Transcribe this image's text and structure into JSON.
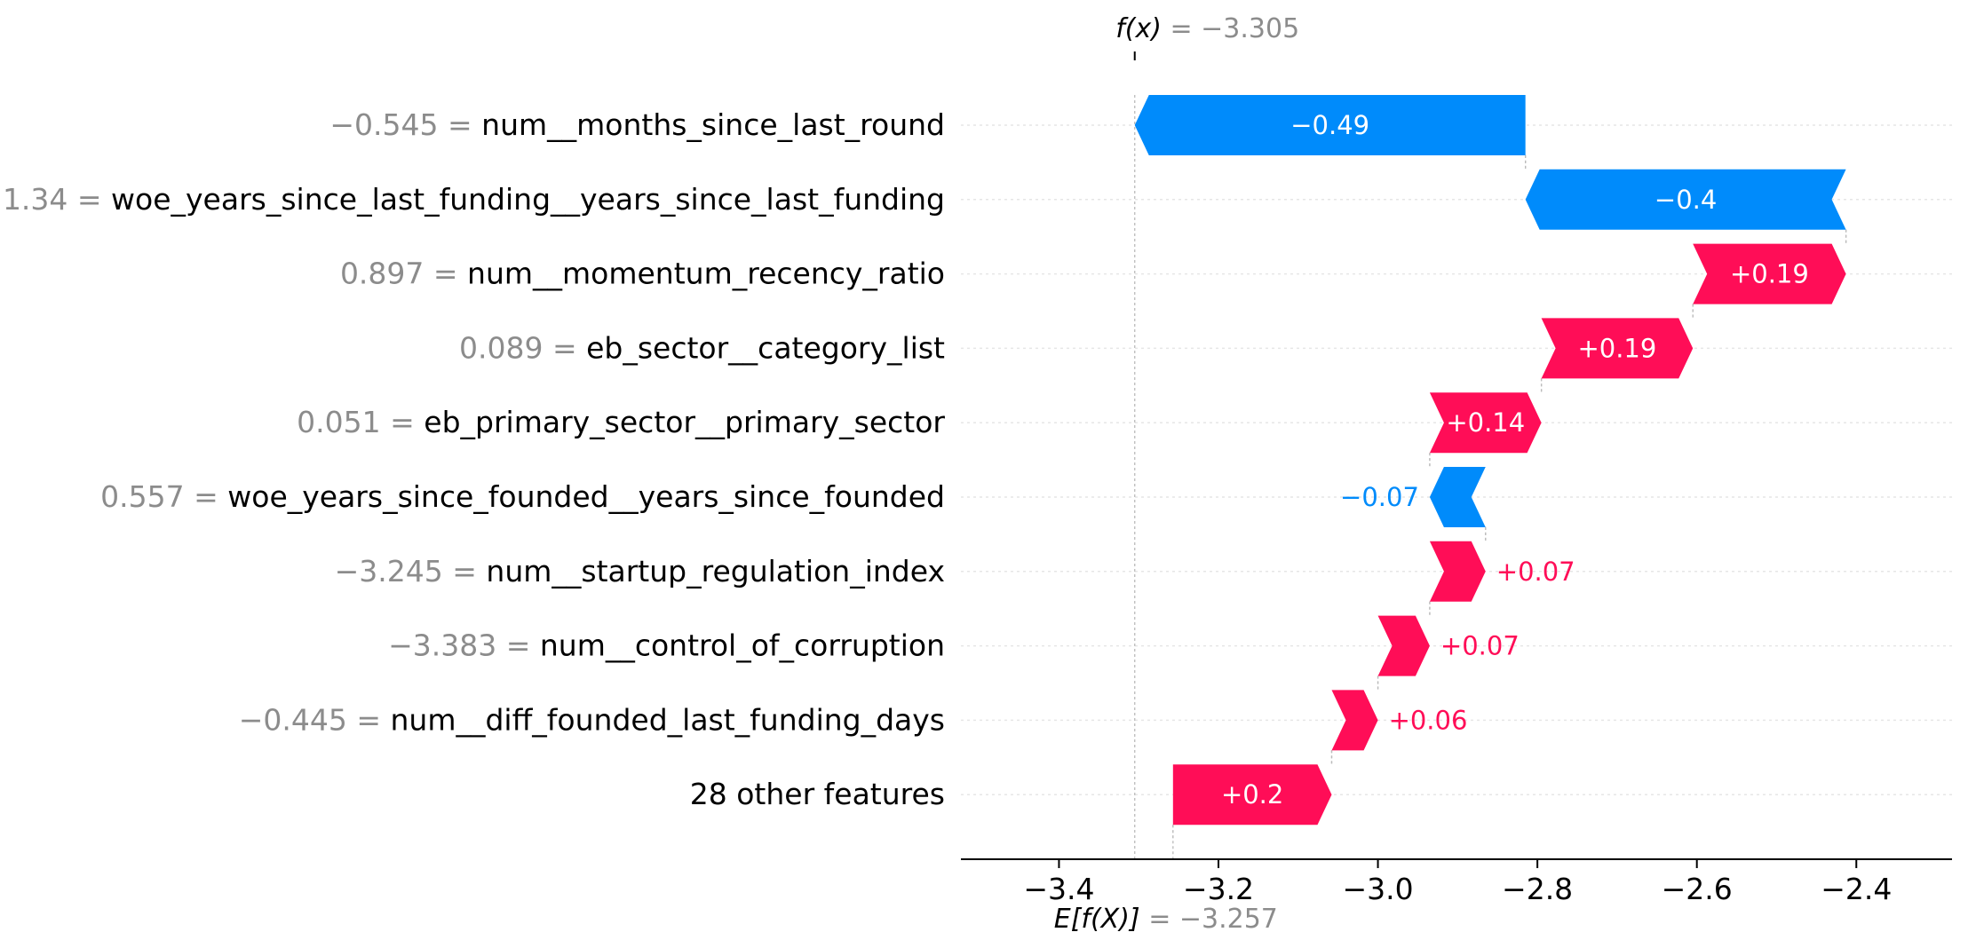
{
  "chart_data": {
    "type": "waterfall",
    "fx_label": "f(x)",
    "fx_value": "−3.305",
    "base_label": "E[f(X)]",
    "base_value_text": "−3.257",
    "base_value": -3.257,
    "final_value": -3.305,
    "features": [
      {
        "value": "−0.545",
        "name": "num__months_since_last_round",
        "contribution": -0.49,
        "label": "−0.49",
        "from": -2.815,
        "to": -3.305
      },
      {
        "value": "1.34",
        "name": "woe_years_since_last_funding__years_since_last_funding",
        "contribution": -0.4,
        "label": "−0.4",
        "from": -2.413,
        "to": -2.815
      },
      {
        "value": "0.897",
        "name": "num__momentum_recency_ratio",
        "contribution": 0.19,
        "label": "+0.19",
        "from": -2.605,
        "to": -2.413
      },
      {
        "value": "0.089",
        "name": "eb_sector__category_list",
        "contribution": 0.19,
        "label": "+0.19",
        "from": -2.795,
        "to": -2.605
      },
      {
        "value": "0.051",
        "name": "eb_primary_sector__primary_sector",
        "contribution": 0.14,
        "label": "+0.14",
        "from": -2.935,
        "to": -2.795
      },
      {
        "value": "0.557",
        "name": "woe_years_since_founded__years_since_founded",
        "contribution": -0.07,
        "label": "−0.07",
        "from": -2.865,
        "to": -2.935
      },
      {
        "value": "−3.245",
        "name": "num__startup_regulation_index",
        "contribution": 0.07,
        "label": "+0.07",
        "from": -2.935,
        "to": -2.865
      },
      {
        "value": "−3.383",
        "name": "num__control_of_corruption",
        "contribution": 0.07,
        "label": "+0.07",
        "from": -3.0,
        "to": -2.935
      },
      {
        "value": "−0.445",
        "name": "num__diff_founded_last_funding_days",
        "contribution": 0.06,
        "label": "+0.06",
        "from": -3.058,
        "to": -3.0
      },
      {
        "value": "",
        "name": "28 other features",
        "contribution": 0.2,
        "label": "+0.2",
        "from": -3.257,
        "to": -3.058
      }
    ],
    "xticks": [
      -3.4,
      -3.2,
      -3.0,
      -2.8,
      -2.6,
      -2.4
    ],
    "xtick_labels": [
      "−3.4",
      "−3.2",
      "−3.0",
      "−2.8",
      "−2.6",
      "−2.4"
    ],
    "xlim": [
      -3.523,
      -2.28
    ],
    "colors": {
      "positive": "#ff0d57",
      "negative": "#008bfb",
      "value_text": "#8c8c8c",
      "axis": "#000000",
      "gridline": "#cccccc"
    }
  }
}
